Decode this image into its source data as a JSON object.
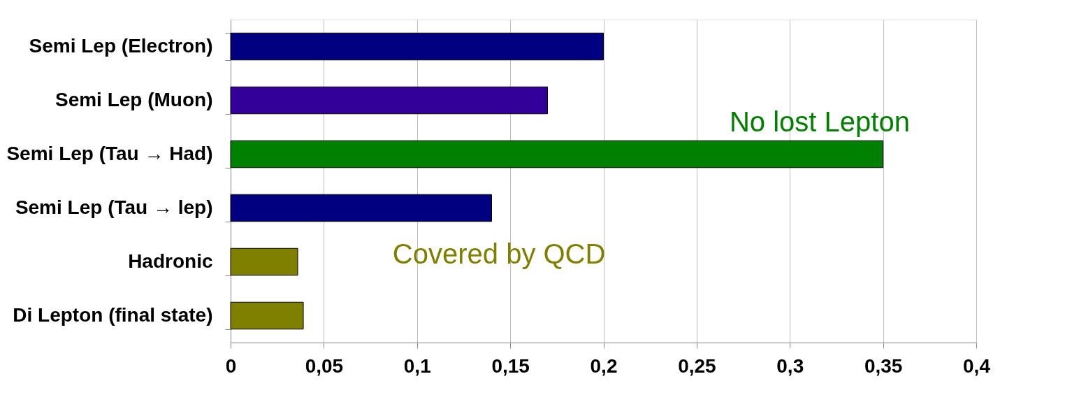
{
  "chart_data": {
    "type": "bar",
    "orientation": "horizontal",
    "categories": [
      "Semi Lep  (Electron)",
      "Semi Lep  (Muon)",
      "Semi Lep (Tau → Had)",
      "Semi Lep  (Tau → lep)",
      "Hadronic",
      "Di Lepton (final state)"
    ],
    "values": [
      0.2,
      0.17,
      0.35,
      0.14,
      0.036,
      0.039
    ],
    "colors": [
      "#000080",
      "#330099",
      "#008000",
      "#000080",
      "#808000",
      "#808000"
    ],
    "xlim": [
      0,
      0.4
    ],
    "xticks": [
      0,
      {
        "value": 0.05,
        "label": "0,05"
      },
      {
        "value": 0.1,
        "label": "0,1"
      },
      {
        "value": 0.15,
        "label": "0,15"
      },
      {
        "value": 0.2,
        "label": "0,2"
      },
      {
        "value": 0.25,
        "label": "0,25"
      },
      {
        "value": 0.3,
        "label": "0,3"
      },
      {
        "value": 0.35,
        "label": "0,35"
      },
      {
        "value": 0.4,
        "label": "0,4"
      }
    ],
    "grid": "x",
    "annotations": [
      "No lost Lepton",
      "Covered by QCD"
    ]
  }
}
